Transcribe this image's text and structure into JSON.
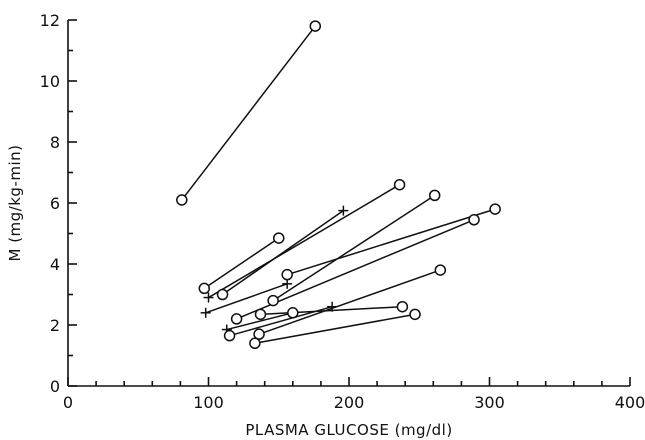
{
  "chart_data": {
    "type": "scatter",
    "xlabel": "PLASMA GLUCOSE (mg/dl)",
    "ylabel": "M (mg/kg-min)",
    "xlim": [
      0,
      400
    ],
    "ylim": [
      0,
      12
    ],
    "xticks": [
      0,
      100,
      200,
      300,
      400
    ],
    "yticks": [
      0,
      2,
      4,
      6,
      8,
      10,
      12
    ],
    "x_minor_step": 20,
    "y_minor_step": 1,
    "grid": false,
    "pairs": [
      {
        "from": {
          "x": 81,
          "y": 6.1,
          "marker": "circle"
        },
        "to": {
          "x": 176,
          "y": 11.8,
          "marker": "circle"
        }
      },
      {
        "from": {
          "x": 97,
          "y": 3.2,
          "marker": "circle"
        },
        "to": {
          "x": 150,
          "y": 4.85,
          "marker": "circle"
        }
      },
      {
        "from": {
          "x": 110,
          "y": 3.0,
          "marker": "circle"
        },
        "to": {
          "x": 196,
          "y": 5.75,
          "marker": "plus"
        }
      },
      {
        "from": {
          "x": 100,
          "y": 2.9,
          "marker": "plus"
        },
        "to": {
          "x": 236,
          "y": 6.6,
          "marker": "circle"
        }
      },
      {
        "from": {
          "x": 98,
          "y": 2.4,
          "marker": "plus"
        },
        "to": {
          "x": 156,
          "y": 3.35,
          "marker": "plus"
        }
      },
      {
        "from": {
          "x": 146,
          "y": 2.8,
          "marker": "circle"
        },
        "to": {
          "x": 261,
          "y": 6.25,
          "marker": "circle"
        }
      },
      {
        "from": {
          "x": 156,
          "y": 3.65,
          "marker": "circle"
        },
        "to": {
          "x": 304,
          "y": 5.8,
          "marker": "circle"
        }
      },
      {
        "from": {
          "x": 120,
          "y": 2.2,
          "marker": "circle"
        },
        "to": {
          "x": 289,
          "y": 5.45,
          "marker": "circle"
        }
      },
      {
        "from": {
          "x": 113,
          "y": 1.85,
          "marker": "plus"
        },
        "to": {
          "x": 160,
          "y": 2.4,
          "marker": "circle"
        }
      },
      {
        "from": {
          "x": 137,
          "y": 2.35,
          "marker": "circle"
        },
        "to": {
          "x": 238,
          "y": 2.6,
          "marker": "circle"
        }
      },
      {
        "from": {
          "x": 115,
          "y": 1.65,
          "marker": "circle"
        },
        "to": {
          "x": 188,
          "y": 2.6,
          "marker": "plus"
        }
      },
      {
        "from": {
          "x": 136,
          "y": 1.7,
          "marker": "circle"
        },
        "to": {
          "x": 265,
          "y": 3.8,
          "marker": "circle"
        }
      },
      {
        "from": {
          "x": 133,
          "y": 1.4,
          "marker": "circle"
        },
        "to": {
          "x": 247,
          "y": 2.35,
          "marker": "circle"
        }
      }
    ]
  }
}
